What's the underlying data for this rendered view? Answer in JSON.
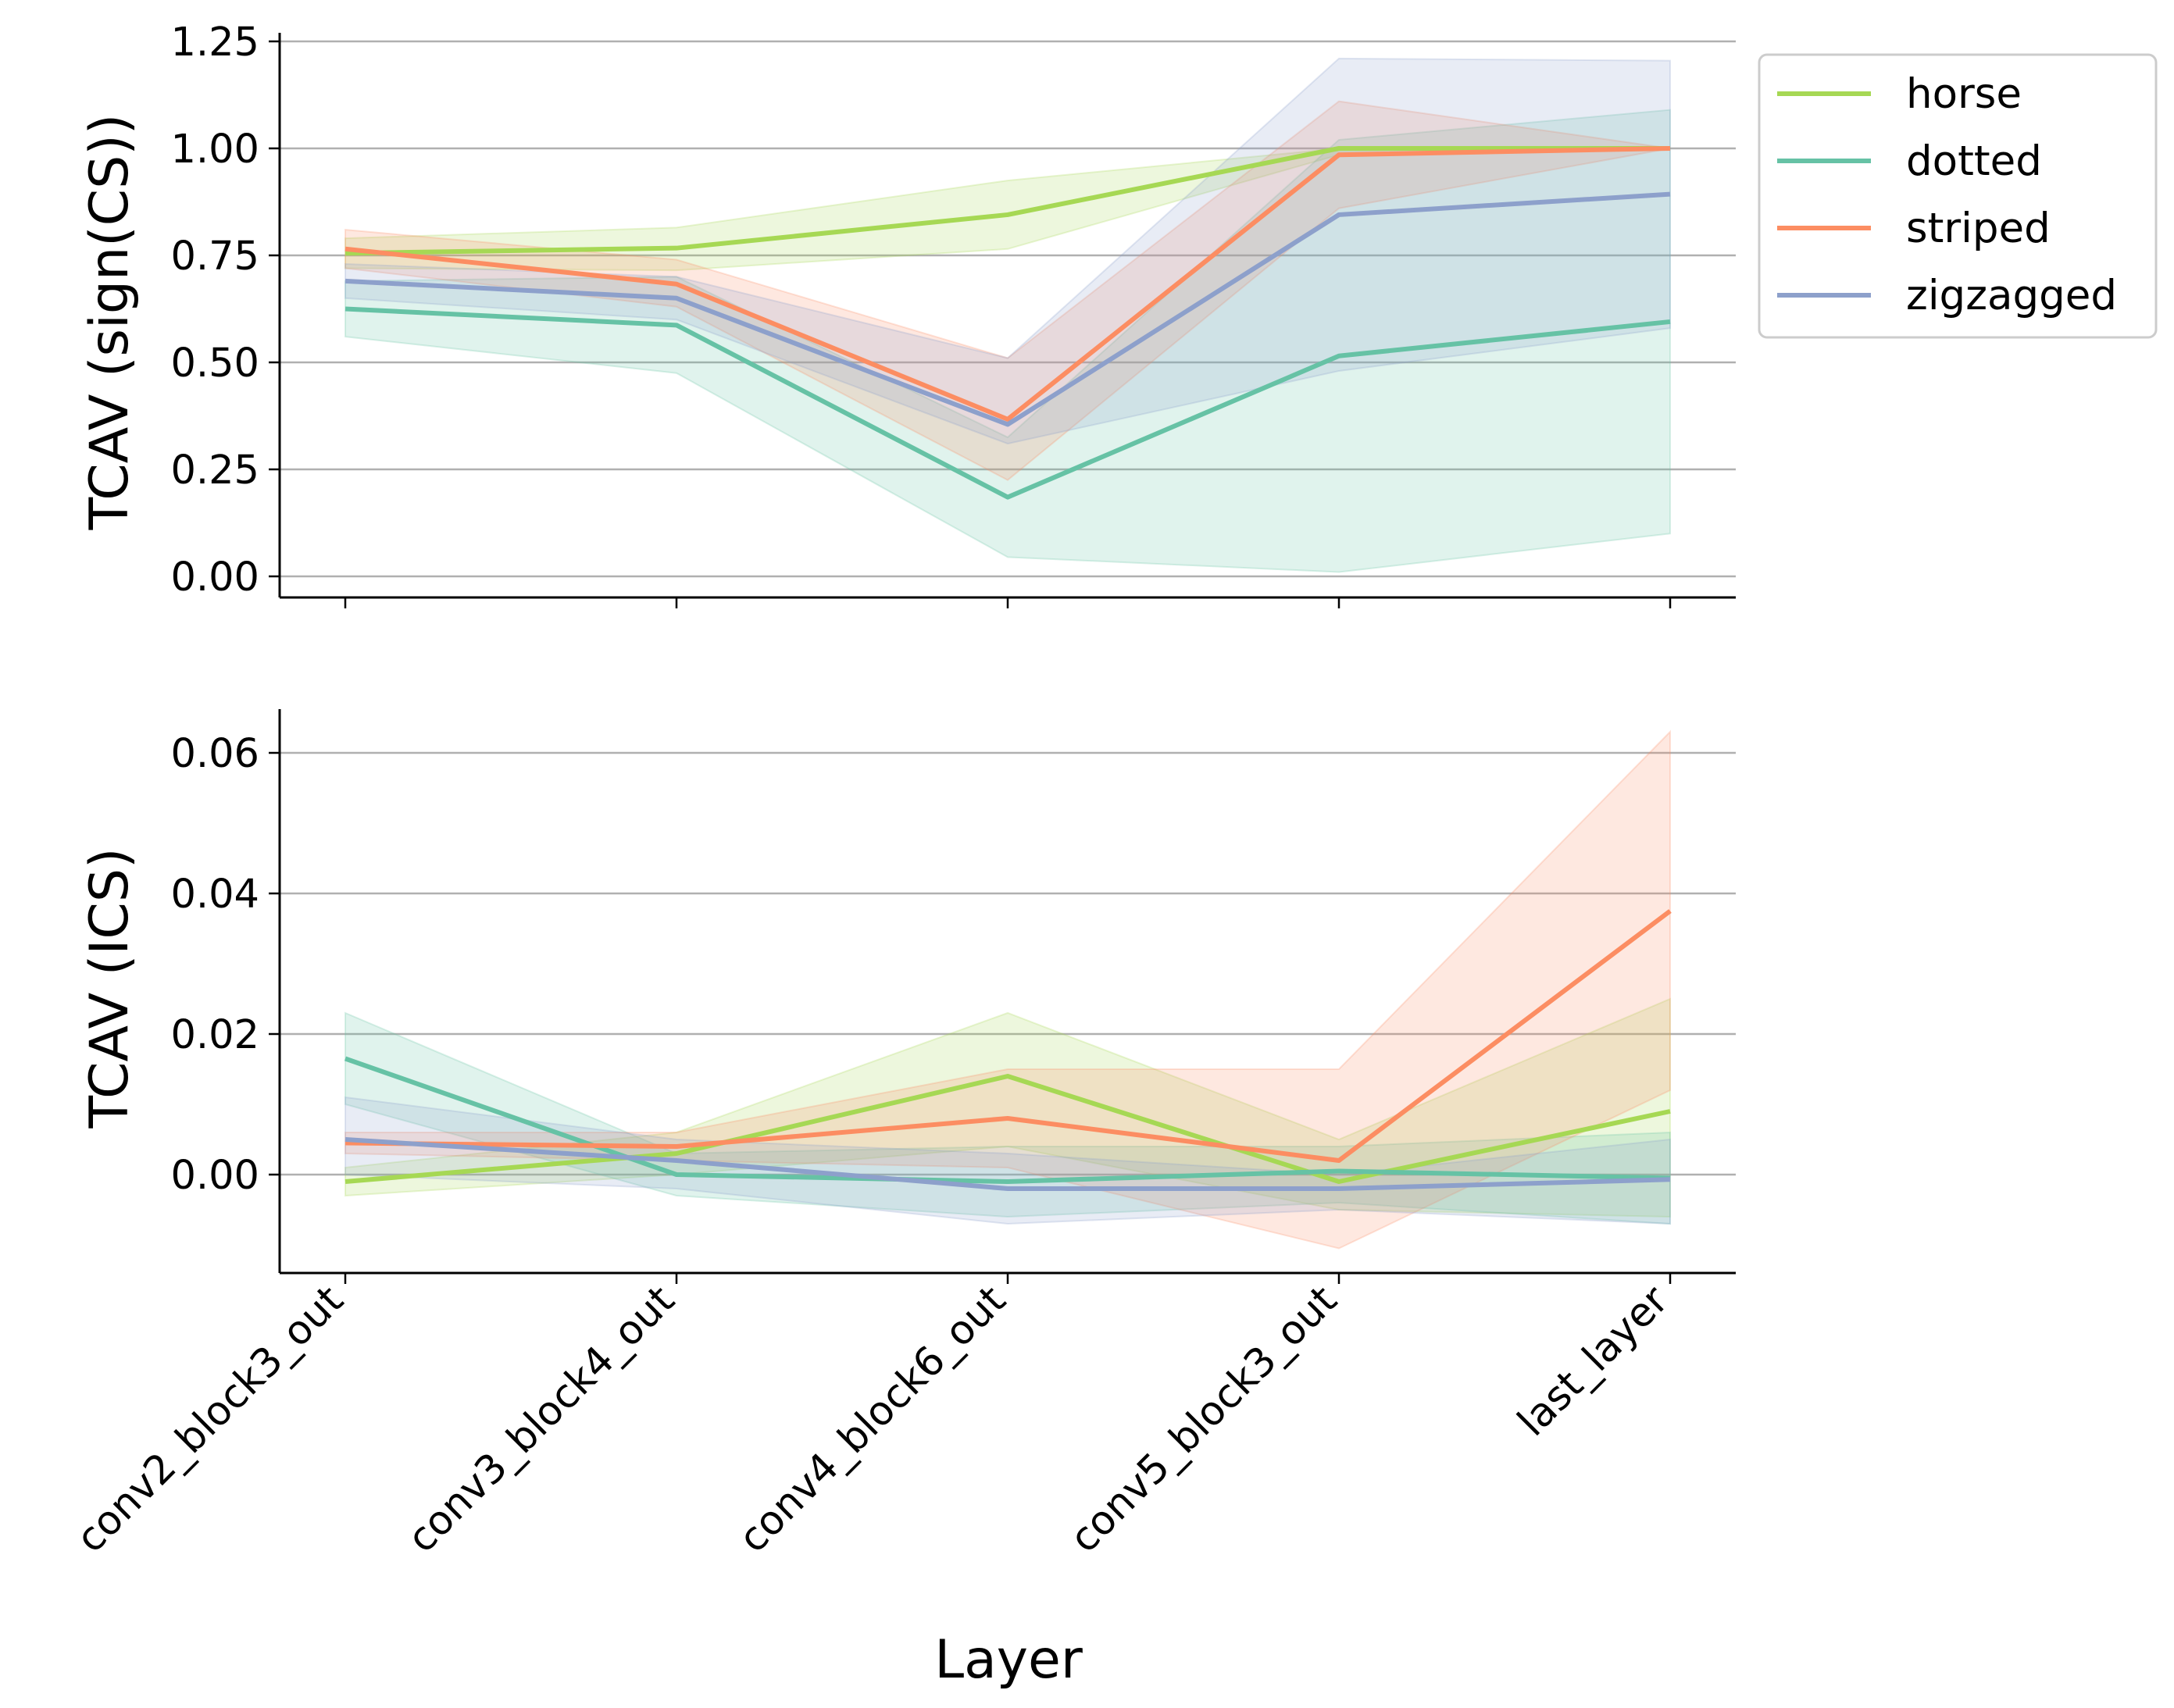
{
  "chart_data": [
    {
      "type": "line",
      "panel": "top",
      "ylabel": "TCAV (sign(CS))",
      "xlabel": "",
      "ylim": [
        -0.05,
        1.27
      ],
      "yticks": [
        0.0,
        0.25,
        0.5,
        0.75,
        1.0,
        1.25
      ],
      "ytick_labels": [
        "0.00",
        "0.25",
        "0.50",
        "0.75",
        "1.00",
        "1.25"
      ],
      "grid": "horizontal",
      "legend": "outside-top-right",
      "categories": [
        "conv2_block3_out",
        "conv3_block4_out",
        "conv4_block6_out",
        "conv5_block3_out",
        "last_layer"
      ],
      "series": [
        {
          "name": "horse",
          "color": "#a6d854",
          "values": [
            0.755,
            0.767,
            0.845,
            1.0,
            1.0
          ],
          "lower": [
            0.72,
            0.715,
            0.765,
            0.985,
            1.0
          ],
          "upper": [
            0.79,
            0.815,
            0.925,
            1.0,
            1.0
          ]
        },
        {
          "name": "dotted",
          "color": "#66c2a5",
          "values": [
            0.625,
            0.587,
            0.185,
            0.515,
            0.595
          ],
          "lower": [
            0.56,
            0.475,
            0.045,
            0.01,
            0.1
          ],
          "upper": [
            0.69,
            0.7,
            0.325,
            1.02,
            1.09
          ]
        },
        {
          "name": "striped",
          "color": "#fc8d62",
          "values": [
            0.765,
            0.683,
            0.367,
            0.985,
            1.0
          ],
          "lower": [
            0.72,
            0.63,
            0.225,
            0.86,
            1.0
          ],
          "upper": [
            0.81,
            0.74,
            0.51,
            1.11,
            1.0
          ]
        },
        {
          "name": "zigzagged",
          "color": "#8da0cb",
          "values": [
            0.69,
            0.65,
            0.355,
            0.845,
            0.893
          ],
          "lower": [
            0.65,
            0.6,
            0.31,
            0.48,
            0.58
          ],
          "upper": [
            0.73,
            0.7,
            0.51,
            1.21,
            1.205
          ]
        }
      ]
    },
    {
      "type": "line",
      "panel": "bottom",
      "ylabel": "TCAV (ICS)",
      "xlabel": "Layer",
      "ylim": [
        -0.014,
        0.066
      ],
      "yticks": [
        0.0,
        0.02,
        0.04,
        0.06
      ],
      "ytick_labels": [
        "0.00",
        "0.02",
        "0.04",
        "0.06"
      ],
      "grid": "horizontal",
      "categories": [
        "conv2_block3_out",
        "conv3_block4_out",
        "conv4_block6_out",
        "conv5_block3_out",
        "last_layer"
      ],
      "series": [
        {
          "name": "horse",
          "color": "#a6d854",
          "values": [
            -0.001,
            0.003,
            0.014,
            -0.001,
            0.009
          ],
          "lower": [
            -0.003,
            0.0,
            0.004,
            -0.005,
            -0.006
          ],
          "upper": [
            0.001,
            0.006,
            0.023,
            0.005,
            0.025
          ]
        },
        {
          "name": "dotted",
          "color": "#66c2a5",
          "values": [
            0.0165,
            0.0,
            -0.001,
            0.0005,
            -0.0005
          ],
          "lower": [
            0.01,
            -0.003,
            -0.006,
            -0.004,
            -0.007
          ],
          "upper": [
            0.023,
            0.003,
            0.004,
            0.004,
            0.006
          ]
        },
        {
          "name": "striped",
          "color": "#fc8d62",
          "values": [
            0.0045,
            0.004,
            0.008,
            0.002,
            0.0375
          ],
          "lower": [
            0.003,
            0.002,
            0.001,
            -0.0105,
            0.012
          ],
          "upper": [
            0.006,
            0.006,
            0.015,
            0.015,
            0.063
          ]
        },
        {
          "name": "zigzagged",
          "color": "#8da0cb",
          "values": [
            0.005,
            0.002,
            -0.002,
            -0.002,
            -0.0007
          ],
          "lower": [
            0.0,
            -0.002,
            -0.007,
            -0.005,
            -0.007
          ],
          "upper": [
            0.011,
            0.005,
            0.003,
            0.0,
            0.005
          ]
        }
      ]
    }
  ],
  "legend": {
    "entries": [
      {
        "name": "horse",
        "color": "#a6d854"
      },
      {
        "name": "dotted",
        "color": "#66c2a5"
      },
      {
        "name": "striped",
        "color": "#fc8d62"
      },
      {
        "name": "zigzagged",
        "color": "#8da0cb"
      }
    ]
  }
}
